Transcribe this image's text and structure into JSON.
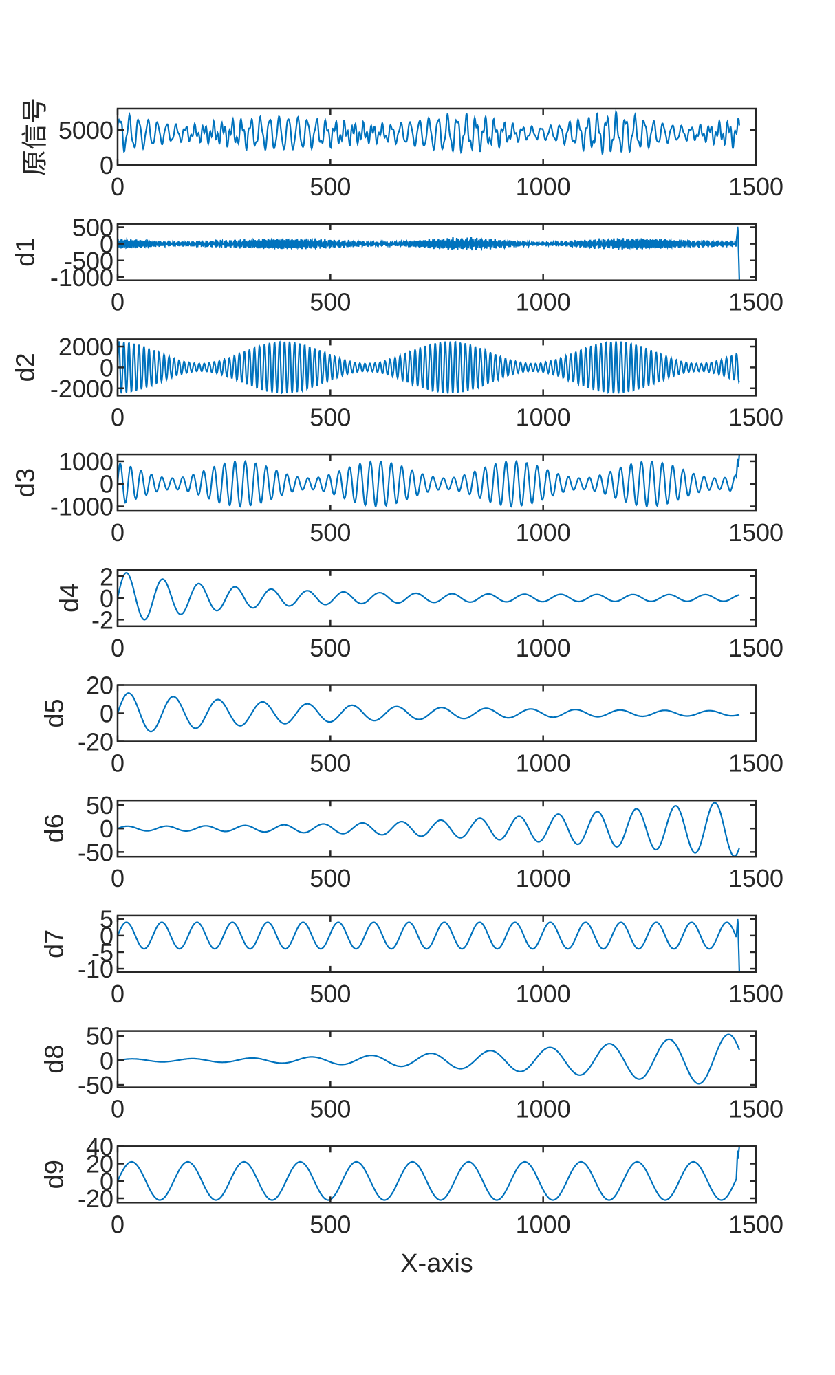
{
  "figure": {
    "xlabel": "X-axis",
    "line_color": "#0072BD",
    "axis_color": "#262626"
  },
  "chart_data": {
    "type": "line",
    "title": "",
    "xlabel": "X-axis",
    "xlim": [
      0,
      1500
    ],
    "x_ticks": [
      0,
      500,
      1000,
      1500
    ],
    "n_samples": 1462,
    "grid": false,
    "legend": null,
    "panels": [
      {
        "ylabel": "原信号",
        "ylim": [
          0,
          8000
        ],
        "y_ticks": [
          0,
          5000
        ],
        "y_tick_labels": [
          "0",
          "5000"
        ],
        "description": "original signal, oscillating around ~4500 with amplitude beating between ~1000 and ~3500",
        "offset": 4500,
        "components": [
          {
            "amp": 2200,
            "period": 22,
            "env_period": 390,
            "env_phase": 0,
            "env_min": 0.35
          },
          {
            "amp": 900,
            "period": 9,
            "env_period": 300,
            "env_phase": 1.0,
            "env_min": 0.2
          }
        ]
      },
      {
        "ylabel": "d1",
        "ylim": [
          -1100,
          600
        ],
        "y_ticks": [
          500,
          0,
          -500,
          -1000
        ],
        "y_tick_labels": [
          "500",
          "0",
          "-500",
          "-1000"
        ],
        "description": "high-frequency noise-like IMF, amplitude ~100-200, end spike to 600 and -1100",
        "offset": 0,
        "components": [
          {
            "amp": 140,
            "period": 4.3,
            "env_period": 420,
            "env_phase": 0.5,
            "env_min": 0.25
          },
          {
            "amp": 70,
            "period": 3.1,
            "env_period": 300,
            "env_phase": 1.6,
            "env_min": 0.3
          }
        ],
        "end_spike": [
          600,
          -1100
        ]
      },
      {
        "ylabel": "d2",
        "ylim": [
          -2700,
          2700
        ],
        "y_ticks": [
          2000,
          0,
          -2000
        ],
        "y_tick_labels": [
          "2000",
          "0",
          "-2000"
        ],
        "description": "beating oscillation, amplitude between ~400 and ~2600, period ~12",
        "offset": 0,
        "components": [
          {
            "amp": 2500,
            "period": 11.8,
            "env_period": 390,
            "env_phase": 0.0,
            "env_min": 0.15
          }
        ]
      },
      {
        "ylabel": "d3",
        "ylim": [
          -1200,
          1300
        ],
        "y_ticks": [
          1000,
          0,
          -1000
        ],
        "y_tick_labels": [
          "1000",
          "0",
          "-1000"
        ],
        "description": "modulated oscillation, amplitude ~300-1100, period ~25; final rise to ~1300",
        "offset": 0,
        "components": [
          {
            "amp": 1000,
            "period": 24.5,
            "env_period": 320,
            "env_phase": 0.6,
            "env_min": 0.25
          }
        ],
        "end_spike": [
          1300,
          null
        ]
      },
      {
        "ylabel": "d4",
        "ylim": [
          -2.6,
          2.6
        ],
        "y_ticks": [
          2,
          0,
          -2
        ],
        "y_tick_labels": [
          "2",
          "0",
          "-2"
        ],
        "description": "decaying oscillation from ±2.5 to ~±0.3, period ~85",
        "offset": 0,
        "components": [
          {
            "amp": 2.5,
            "period": 85,
            "decay": 250,
            "floor": 0.3
          }
        ]
      },
      {
        "ylabel": "d5",
        "ylim": [
          -20,
          20
        ],
        "y_ticks": [
          20,
          0,
          -20
        ],
        "y_tick_labels": [
          "20",
          "0",
          "-20"
        ],
        "description": "decaying oscillation from ±15 to ~±1, period ~105",
        "offset": 0,
        "components": [
          {
            "amp": 15,
            "period": 105,
            "decay": 500,
            "floor": 1
          }
        ]
      },
      {
        "ylabel": "d6",
        "ylim": [
          -60,
          60
        ],
        "y_ticks": [
          50,
          0,
          -50
        ],
        "y_tick_labels": [
          "50",
          "0",
          "-50"
        ],
        "description": "growing oscillation from ±5 to ±60, period ~90",
        "offset": 0,
        "components": [
          {
            "amp": 5,
            "period": 92,
            "grow_to": 60
          }
        ]
      },
      {
        "ylabel": "d7",
        "ylim": [
          -11,
          6
        ],
        "y_ticks": [
          5,
          0,
          -5,
          -10
        ],
        "y_tick_labels": [
          "5",
          "0",
          "-5",
          "-10"
        ],
        "description": "steady oscillation ±4, period ~85, end drops to -11",
        "offset": 0,
        "components": [
          {
            "amp": 4,
            "period": 83
          }
        ],
        "end_spike": [
          6,
          -11
        ]
      },
      {
        "ylabel": "d8",
        "ylim": [
          -55,
          60
        ],
        "y_ticks": [
          50,
          0,
          -50
        ],
        "y_tick_labels": [
          "50",
          "0",
          "-50"
        ],
        "description": "growing oscillation from ±3 to ±55, period ~140",
        "offset": 0,
        "components": [
          {
            "amp": 3,
            "period": 140,
            "grow_to": 55
          }
        ]
      },
      {
        "ylabel": "d9",
        "ylim": [
          -25,
          40
        ],
        "y_ticks": [
          40,
          20,
          0,
          -20
        ],
        "y_tick_labels": [
          "40",
          "20",
          "0",
          "-20"
        ],
        "description": "slow oscillation ~±20, period ~130, dip around 500, end rise to 40",
        "offset": 0,
        "components": [
          {
            "amp": 22,
            "period": 132
          }
        ],
        "end_spike": [
          40,
          null
        ]
      }
    ]
  }
}
